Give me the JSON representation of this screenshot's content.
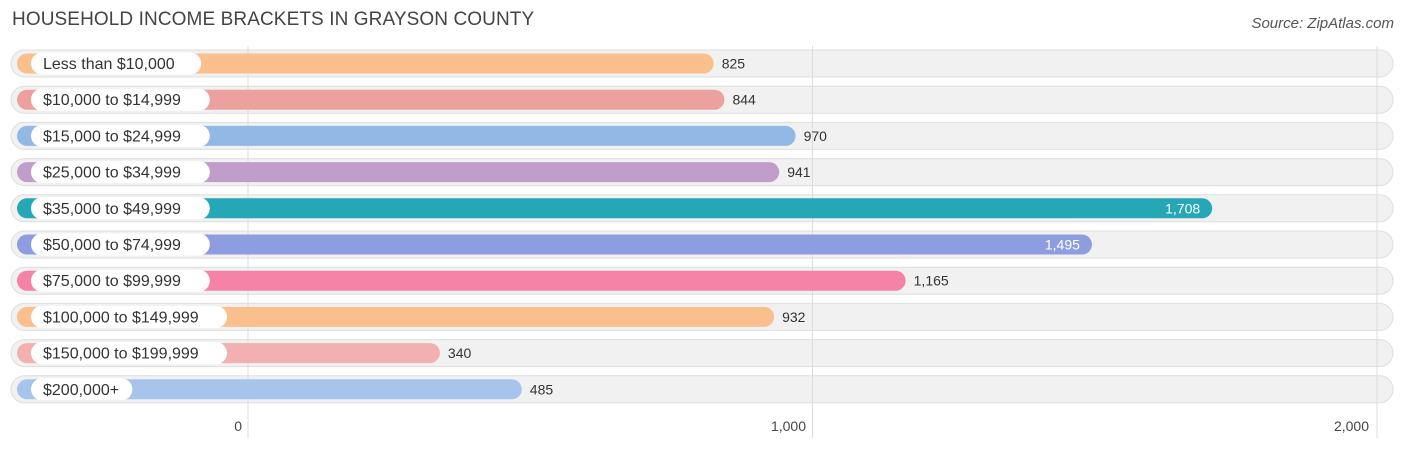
{
  "header": {
    "title": "HOUSEHOLD INCOME BRACKETS IN GRAYSON COUNTY",
    "source": "Source: ZipAtlas.com"
  },
  "chart_data": {
    "type": "bar",
    "orientation": "horizontal",
    "title": "HOUSEHOLD INCOME BRACKETS IN GRAYSON COUNTY",
    "categories": [
      "Less than $10,000",
      "$10,000 to $14,999",
      "$15,000 to $24,999",
      "$25,000 to $34,999",
      "$35,000 to $49,999",
      "$50,000 to $74,999",
      "$75,000 to $99,999",
      "$100,000 to $149,999",
      "$150,000 to $199,999",
      "$200,000+"
    ],
    "values": [
      825,
      844,
      970,
      941,
      1708,
      1495,
      1165,
      932,
      340,
      485
    ],
    "value_labels": [
      "825",
      "844",
      "970",
      "941",
      "1,708",
      "1,495",
      "1,165",
      "932",
      "340",
      "485"
    ],
    "colors": [
      "#f9c08e",
      "#eca19f",
      "#92b8e6",
      "#c19ec9",
      "#25a7b5",
      "#8e9de0",
      "#f483a7",
      "#f9c08e",
      "#f2b0b0",
      "#a6c4ec"
    ],
    "xlim": [
      0,
      2000
    ],
    "x_ticks": [
      0,
      1000,
      2000
    ],
    "x_tick_labels": [
      "0",
      "1,000",
      "2,000"
    ],
    "grid": true,
    "legend": "none"
  }
}
